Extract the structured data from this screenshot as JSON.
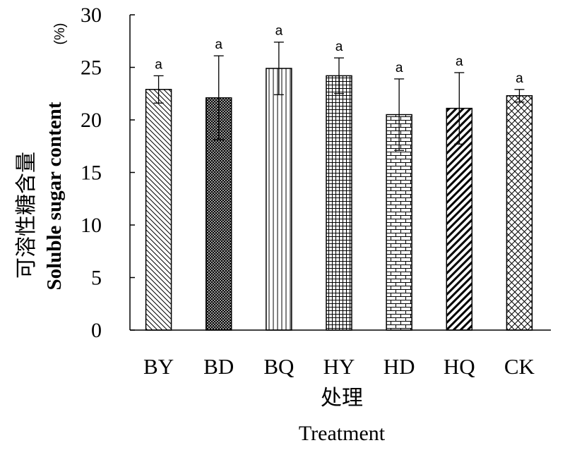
{
  "chart_data": {
    "type": "bar",
    "categories": [
      "BY",
      "BD",
      "BQ",
      "HY",
      "HD",
      "HQ",
      "CK"
    ],
    "values": [
      22.9,
      22.1,
      24.9,
      24.2,
      20.5,
      21.1,
      22.3
    ],
    "errors": [
      1.3,
      4.0,
      2.5,
      1.7,
      3.4,
      3.4,
      0.6
    ],
    "significance": [
      "a",
      "a",
      "a",
      "a",
      "a",
      "a",
      "a"
    ],
    "xlabel_cn": "处理",
    "xlabel_en": "Treatment",
    "ylabel_cn": "可溶性糖含量",
    "ylabel_en": "Soluble sugar content",
    "ylabel_unit": "(%)",
    "yticks": [
      "0",
      "5",
      "10",
      "15",
      "20",
      "25",
      "30"
    ],
    "ylim": [
      0,
      30
    ],
    "patterns": [
      "back-diagonal",
      "dense-crosshatch",
      "vertical",
      "grid",
      "brick",
      "bold-diagonal",
      "diamond"
    ],
    "grid": false,
    "legend": "none",
    "colors": {
      "bar_outline": "#000000",
      "bar_fill": "#ffffff",
      "pattern": "#000000"
    }
  }
}
